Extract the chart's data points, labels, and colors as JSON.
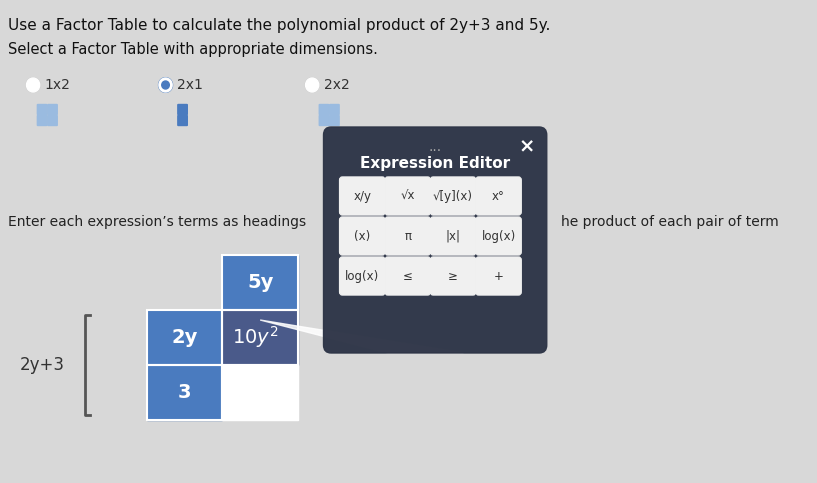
{
  "title_text": "Use a Factor Table to calculate the polynomial product of 2y+3 and 5y.",
  "subtitle_text": "Select a Factor Table with appropriate dimensions.",
  "radio_options": [
    "1x2",
    "2x1",
    "2x2"
  ],
  "radio_selected": 1,
  "instruction_text": "Enter each expression’s terms as headings",
  "instruction_text2": "he product of each pair of term",
  "bg_color": "#d8d8d8",
  "table_header_color": "#4a7bbf",
  "table_product_color": "#4a5a8a",
  "table_row_labels": [
    "2y",
    "3"
  ],
  "table_col_labels": [
    "5y"
  ],
  "table_products": [
    [
      "10y²"
    ],
    [
      ""
    ]
  ],
  "expr_label": "2y+3",
  "editor_bg": "#2e3547",
  "editor_title": "Expression Editor",
  "editor_buttons_row1": [
    "x/y",
    "√x",
    "√[y](x)",
    "x°"
  ],
  "editor_buttons_row2": [
    "(x)",
    "π",
    "|x|",
    "log(x)"
  ],
  "editor_buttons_row3": [
    "log(x)",
    "≤",
    "≥",
    "+"
  ],
  "editor_button_color": "#f0f0f0",
  "editor_button_text_color": "#333333",
  "icon_colors": [
    "#6c9bc9",
    "#4a7bbf",
    "#4a5a8a"
  ]
}
